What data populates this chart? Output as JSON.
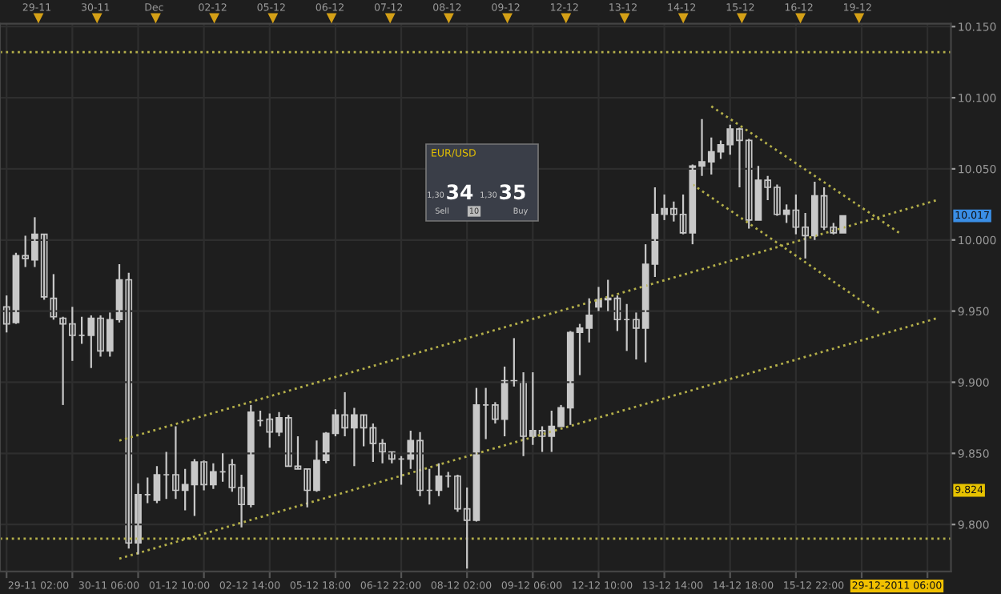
{
  "chart_data": {
    "type": "candlestick",
    "color": "#c8c8c8",
    "categories": [
      null,
      null,
      null,
      null,
      null,
      null,
      null,
      null,
      null,
      null,
      null,
      null,
      null,
      null,
      null,
      null,
      null,
      null,
      null,
      null,
      null,
      null,
      null,
      null,
      null,
      null,
      null,
      null,
      null,
      null,
      null,
      null,
      null,
      null,
      null,
      null,
      null,
      null,
      null,
      null,
      null,
      null,
      null,
      null,
      null,
      null,
      null,
      null,
      null,
      null,
      null,
      null,
      null,
      null,
      null,
      null,
      null,
      null,
      null,
      null,
      null,
      null,
      null,
      null,
      null,
      null,
      null,
      null,
      null,
      null,
      null,
      null,
      null,
      null,
      null,
      null,
      null,
      null,
      null,
      null,
      null,
      null,
      null,
      null,
      null,
      null,
      null,
      null,
      null,
      null,
      null,
      null,
      null,
      null,
      null,
      null,
      null,
      null,
      null,
      null,
      null
    ],
    "ohlc": [
      [
        9953,
        9961,
        9935,
        9941
      ],
      [
        9942,
        9991,
        9941,
        9989
      ],
      [
        9989,
        10003,
        9981,
        9987
      ],
      [
        9986,
        10016,
        9981,
        10004
      ],
      [
        10004,
        10004,
        9958,
        9960
      ],
      [
        9959,
        9976,
        9944,
        9946
      ],
      [
        9945,
        9946,
        9884,
        9941
      ],
      [
        9941,
        9953,
        9915,
        9933
      ],
      [
        9933,
        9946,
        9927,
        9933
      ],
      [
        9933,
        9947,
        9910,
        9945
      ],
      [
        9945,
        9947,
        9918,
        9922
      ],
      [
        9922,
        9949,
        9918,
        9944
      ],
      [
        9944,
        9983,
        9942,
        9972
      ],
      [
        9972,
        9977,
        9783,
        9787
      ],
      [
        9787,
        9829,
        9779,
        9821
      ],
      [
        9821,
        9833,
        9815,
        9821
      ],
      [
        9817,
        9841,
        9815,
        9835
      ],
      [
        9835,
        9851,
        9818,
        9835
      ],
      [
        9835,
        9869,
        9818,
        9824
      ],
      [
        9824,
        9839,
        9810,
        9828
      ],
      [
        9828,
        9846,
        9806,
        9844
      ],
      [
        9844,
        9845,
        9824,
        9828
      ],
      [
        9828,
        9843,
        9825,
        9837
      ],
      [
        9837,
        9850,
        9830,
        9837
      ],
      [
        9842,
        9846,
        9823,
        9826
      ],
      [
        9826,
        9835,
        9798,
        9814
      ],
      [
        9814,
        9884,
        9812,
        9879
      ],
      [
        9873,
        9880,
        9869,
        9873
      ],
      [
        9874,
        9878,
        9854,
        9865
      ],
      [
        9865,
        9879,
        9862,
        9875
      ],
      [
        9875,
        9877,
        9841,
        9841
      ],
      [
        9841,
        9862,
        9839,
        9839
      ],
      [
        9839,
        9839,
        9812,
        9824
      ],
      [
        9824,
        9859,
        9823,
        9845
      ],
      [
        9845,
        9865,
        9843,
        9864
      ],
      [
        9864,
        9881,
        9862,
        9877
      ],
      [
        9877,
        9893,
        9862,
        9868
      ],
      [
        9868,
        9882,
        9841,
        9877
      ],
      [
        9877,
        9877,
        9855,
        9868
      ],
      [
        9868,
        9871,
        9844,
        9857
      ],
      [
        9857,
        9860,
        9843,
        9851
      ],
      [
        9851,
        9851,
        9843,
        9846
      ],
      [
        9846,
        9848,
        9828,
        9846
      ],
      [
        9846,
        9866,
        9839,
        9859
      ],
      [
        9859,
        9865,
        9820,
        9824
      ],
      [
        9824,
        9839,
        9814,
        9824
      ],
      [
        9824,
        9843,
        9820,
        9834
      ],
      [
        9834,
        9837,
        9826,
        9834
      ],
      [
        9834,
        9835,
        9809,
        9811
      ],
      [
        9811,
        9826,
        9769,
        9803
      ],
      [
        9803,
        9896,
        9802,
        9884
      ],
      [
        9884,
        9896,
        9860,
        9884
      ],
      [
        9884,
        9886,
        9871,
        9874
      ],
      [
        9874,
        9911,
        9862,
        9901
      ],
      [
        9901,
        9931,
        9897,
        9900
      ],
      [
        9900,
        9907,
        9848,
        9862
      ],
      [
        9862,
        9907,
        9856,
        9866
      ],
      [
        9866,
        9869,
        9851,
        9862
      ],
      [
        9862,
        9880,
        9851,
        9869
      ],
      [
        9869,
        9884,
        9869,
        9882
      ],
      [
        9882,
        9936,
        9870,
        9935
      ],
      [
        9935,
        9941,
        9905,
        9938
      ],
      [
        9938,
        9959,
        9928,
        9947
      ],
      [
        9953,
        9967,
        9950,
        9958
      ],
      [
        9958,
        9972,
        9950,
        9959
      ],
      [
        9959,
        9961,
        9936,
        9944
      ],
      [
        9944,
        9955,
        9922,
        9944
      ],
      [
        9944,
        9949,
        9916,
        9938
      ],
      [
        9938,
        9997,
        9914,
        9983
      ],
      [
        9983,
        10037,
        9974,
        10018
      ],
      [
        10018,
        10032,
        10014,
        10022
      ],
      [
        10022,
        10027,
        10013,
        10018
      ],
      [
        10018,
        10032,
        10004,
        10005
      ],
      [
        10005,
        10053,
        9997,
        10052
      ],
      [
        10052,
        10085,
        10045,
        10055
      ],
      [
        10055,
        10072,
        10046,
        10062
      ],
      [
        10062,
        10070,
        10057,
        10067
      ],
      [
        10067,
        10081,
        10060,
        10078
      ],
      [
        10078,
        10079,
        10037,
        10070
      ],
      [
        10070,
        10071,
        10008,
        10014
      ],
      [
        10014,
        10052,
        10014,
        10042
      ],
      [
        10042,
        10045,
        10028,
        10037
      ],
      [
        10037,
        10039,
        10017,
        10018
      ],
      [
        10018,
        10025,
        10012,
        10021
      ],
      [
        10021,
        10032,
        10004,
        10009
      ],
      [
        10009,
        10019,
        9987,
        10003
      ],
      [
        10003,
        10041,
        10000,
        10031
      ],
      [
        10031,
        10037,
        10007,
        10009
      ],
      [
        10009,
        10012,
        10004,
        10005
      ],
      [
        10005,
        10017,
        10005,
        10017
      ],
      null,
      null,
      null,
      null,
      null,
      null,
      null,
      null,
      null,
      null,
      null
    ],
    "series": [
      {
        "type": "line",
        "color": "#b5b04a",
        "line_style": "dotted",
        "values": [
          null,
          null,
          null,
          null,
          null,
          null,
          null,
          null,
          null,
          null,
          null,
          null,
          9859,
          null,
          null,
          null,
          null,
          null,
          null,
          null,
          null,
          null,
          null,
          null,
          null,
          null,
          null,
          null,
          null,
          null,
          null,
          null,
          null,
          null,
          null,
          null,
          null,
          null,
          null,
          null,
          null,
          null,
          null,
          null,
          null,
          null,
          null,
          null,
          null,
          null,
          null,
          null,
          null,
          null,
          null,
          null,
          null,
          null,
          null,
          null,
          null,
          null,
          null,
          null,
          null,
          null,
          null,
          null,
          null,
          null,
          null,
          null,
          null,
          null,
          null,
          null,
          null,
          null,
          null,
          null,
          null,
          null,
          null,
          null,
          null,
          null,
          null,
          null,
          null,
          null,
          null,
          null,
          null,
          null,
          null,
          null,
          null,
          null,
          null,
          10028,
          null
        ]
      },
      {
        "type": "line",
        "color": "#b5b04a",
        "line_style": "dotted",
        "values": [
          null,
          null,
          null,
          null,
          null,
          null,
          null,
          null,
          null,
          null,
          null,
          null,
          9776,
          null,
          null,
          null,
          null,
          null,
          null,
          null,
          null,
          null,
          null,
          null,
          null,
          null,
          null,
          null,
          null,
          null,
          null,
          null,
          null,
          null,
          null,
          null,
          null,
          null,
          null,
          null,
          null,
          null,
          null,
          null,
          null,
          null,
          null,
          null,
          null,
          null,
          null,
          null,
          null,
          null,
          null,
          null,
          null,
          null,
          null,
          null,
          null,
          null,
          null,
          null,
          null,
          null,
          null,
          null,
          null,
          null,
          null,
          null,
          null,
          null,
          null,
          null,
          null,
          null,
          null,
          null,
          null,
          null,
          null,
          null,
          null,
          null,
          null,
          null,
          null,
          null,
          null,
          null,
          null,
          null,
          null,
          null,
          null,
          null,
          null,
          9945,
          null
        ]
      },
      {
        "type": "line",
        "color": "#b5b04a",
        "line_style": "dotted",
        "values": [
          null,
          null,
          null,
          null,
          null,
          null,
          null,
          null,
          null,
          null,
          null,
          null,
          null,
          null,
          null,
          null,
          null,
          null,
          null,
          null,
          null,
          null,
          null,
          null,
          null,
          null,
          null,
          null,
          null,
          null,
          null,
          null,
          null,
          null,
          null,
          null,
          null,
          null,
          null,
          null,
          null,
          null,
          null,
          null,
          null,
          null,
          null,
          null,
          null,
          null,
          null,
          null,
          null,
          null,
          null,
          null,
          null,
          null,
          null,
          null,
          null,
          null,
          null,
          null,
          null,
          null,
          null,
          null,
          null,
          null,
          null,
          null,
          null,
          null,
          null,
          10094,
          null,
          null,
          null,
          null,
          null,
          null,
          null,
          null,
          null,
          null,
          null,
          null,
          null,
          null,
          null,
          null,
          null,
          null,
          null,
          10005,
          null,
          null,
          null,
          null,
          null
        ]
      },
      {
        "type": "line",
        "color": "#b5b04a",
        "line_style": "dotted",
        "values": [
          null,
          null,
          null,
          null,
          null,
          null,
          null,
          null,
          null,
          null,
          null,
          null,
          null,
          null,
          null,
          null,
          null,
          null,
          null,
          null,
          null,
          null,
          null,
          null,
          null,
          null,
          null,
          null,
          null,
          null,
          null,
          null,
          null,
          null,
          null,
          null,
          null,
          null,
          null,
          null,
          null,
          null,
          null,
          null,
          null,
          null,
          null,
          null,
          null,
          null,
          null,
          null,
          null,
          null,
          null,
          null,
          null,
          null,
          null,
          null,
          null,
          null,
          null,
          null,
          null,
          null,
          null,
          null,
          null,
          null,
          null,
          null,
          null,
          10039,
          null,
          null,
          null,
          null,
          null,
          null,
          null,
          null,
          null,
          null,
          null,
          null,
          null,
          null,
          null,
          null,
          null,
          null,
          null,
          9948,
          null,
          null,
          null,
          null,
          null,
          null,
          null
        ]
      }
    ],
    "ref_lines": [
      {
        "axis": "y",
        "value": 10132,
        "color": "#b5b04a",
        "line_style": "dotted"
      },
      {
        "axis": "y",
        "value": 9790,
        "color": "#b5b04a",
        "line_style": "dotted"
      }
    ],
    "ylim": [
      9767,
      10152
    ],
    "yticks": [
      {
        "value": 9800,
        "label": "9.800"
      },
      {
        "value": 9850,
        "label": "9.850"
      },
      {
        "value": 9900,
        "label": "9.900"
      },
      {
        "value": 9950,
        "label": "9.950"
      },
      {
        "value": 10000,
        "label": "10.000"
      },
      {
        "value": 10050,
        "label": "10.050"
      },
      {
        "value": 10100,
        "label": "10.100"
      },
      {
        "value": 10150,
        "label": "10.150"
      }
    ],
    "grid": true,
    "annotations": [
      "29-11 02:00",
      "30-11 06:00",
      "01-12 10:00",
      "02-12 14:00",
      "05-12 18:00",
      "06-12 22:00",
      "08-12 02:00",
      "09-12 06:00",
      "12-12 10:00",
      "13-12 14:00",
      "14-12 18:00",
      "15-12 22:00",
      "29-11",
      "30-11",
      "Dec",
      "02-12",
      "05-12",
      "06-12",
      "07-12",
      "08-12",
      "09-12",
      "12-12",
      "13-12",
      "14-12",
      "15-12",
      "16-12",
      "19-12",
      "29-12-2011 06:00",
      {
        "text": "10.017",
        "y": 10017
      },
      {
        "text": "9.824",
        "y": 9824
      },
      "EUR/USD",
      "1,30",
      "34",
      "1,30",
      "35",
      "Sell",
      "10",
      "Buy"
    ]
  }
}
